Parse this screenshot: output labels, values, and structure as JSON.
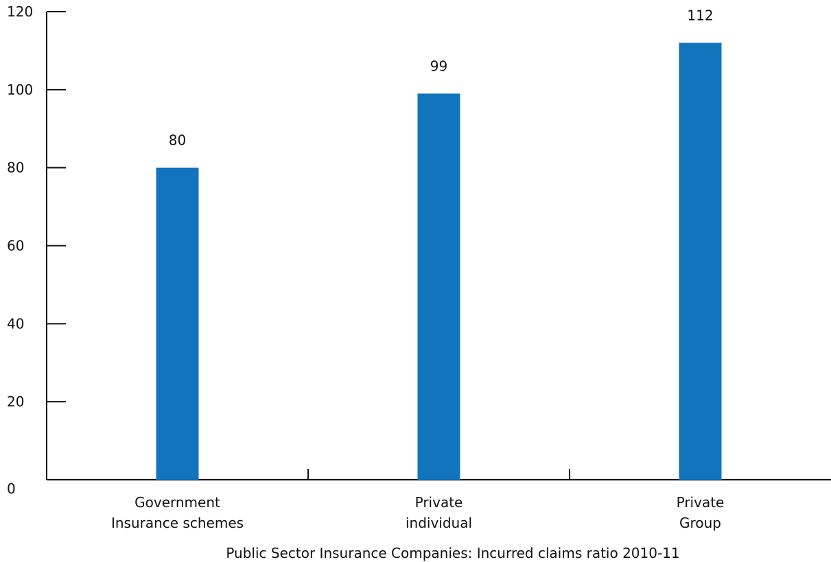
{
  "chart_data": {
    "type": "bar",
    "categories": [
      [
        "Government",
        "Insurance schemes"
      ],
      [
        "Private",
        "individual"
      ],
      [
        "Private",
        "Group"
      ]
    ],
    "values": [
      80,
      99,
      112
    ],
    "data_labels": [
      "80",
      "99",
      "112"
    ],
    "title": "Public Sector Insurance Companies: Incurred claims ratio 2010-11",
    "xlabel": "",
    "ylabel": "",
    "ylim": [
      0,
      120
    ],
    "yticks": [
      0,
      20,
      40,
      60,
      80,
      100,
      120
    ],
    "grid": false,
    "legend": "none",
    "bar_color": "#1174bc"
  }
}
